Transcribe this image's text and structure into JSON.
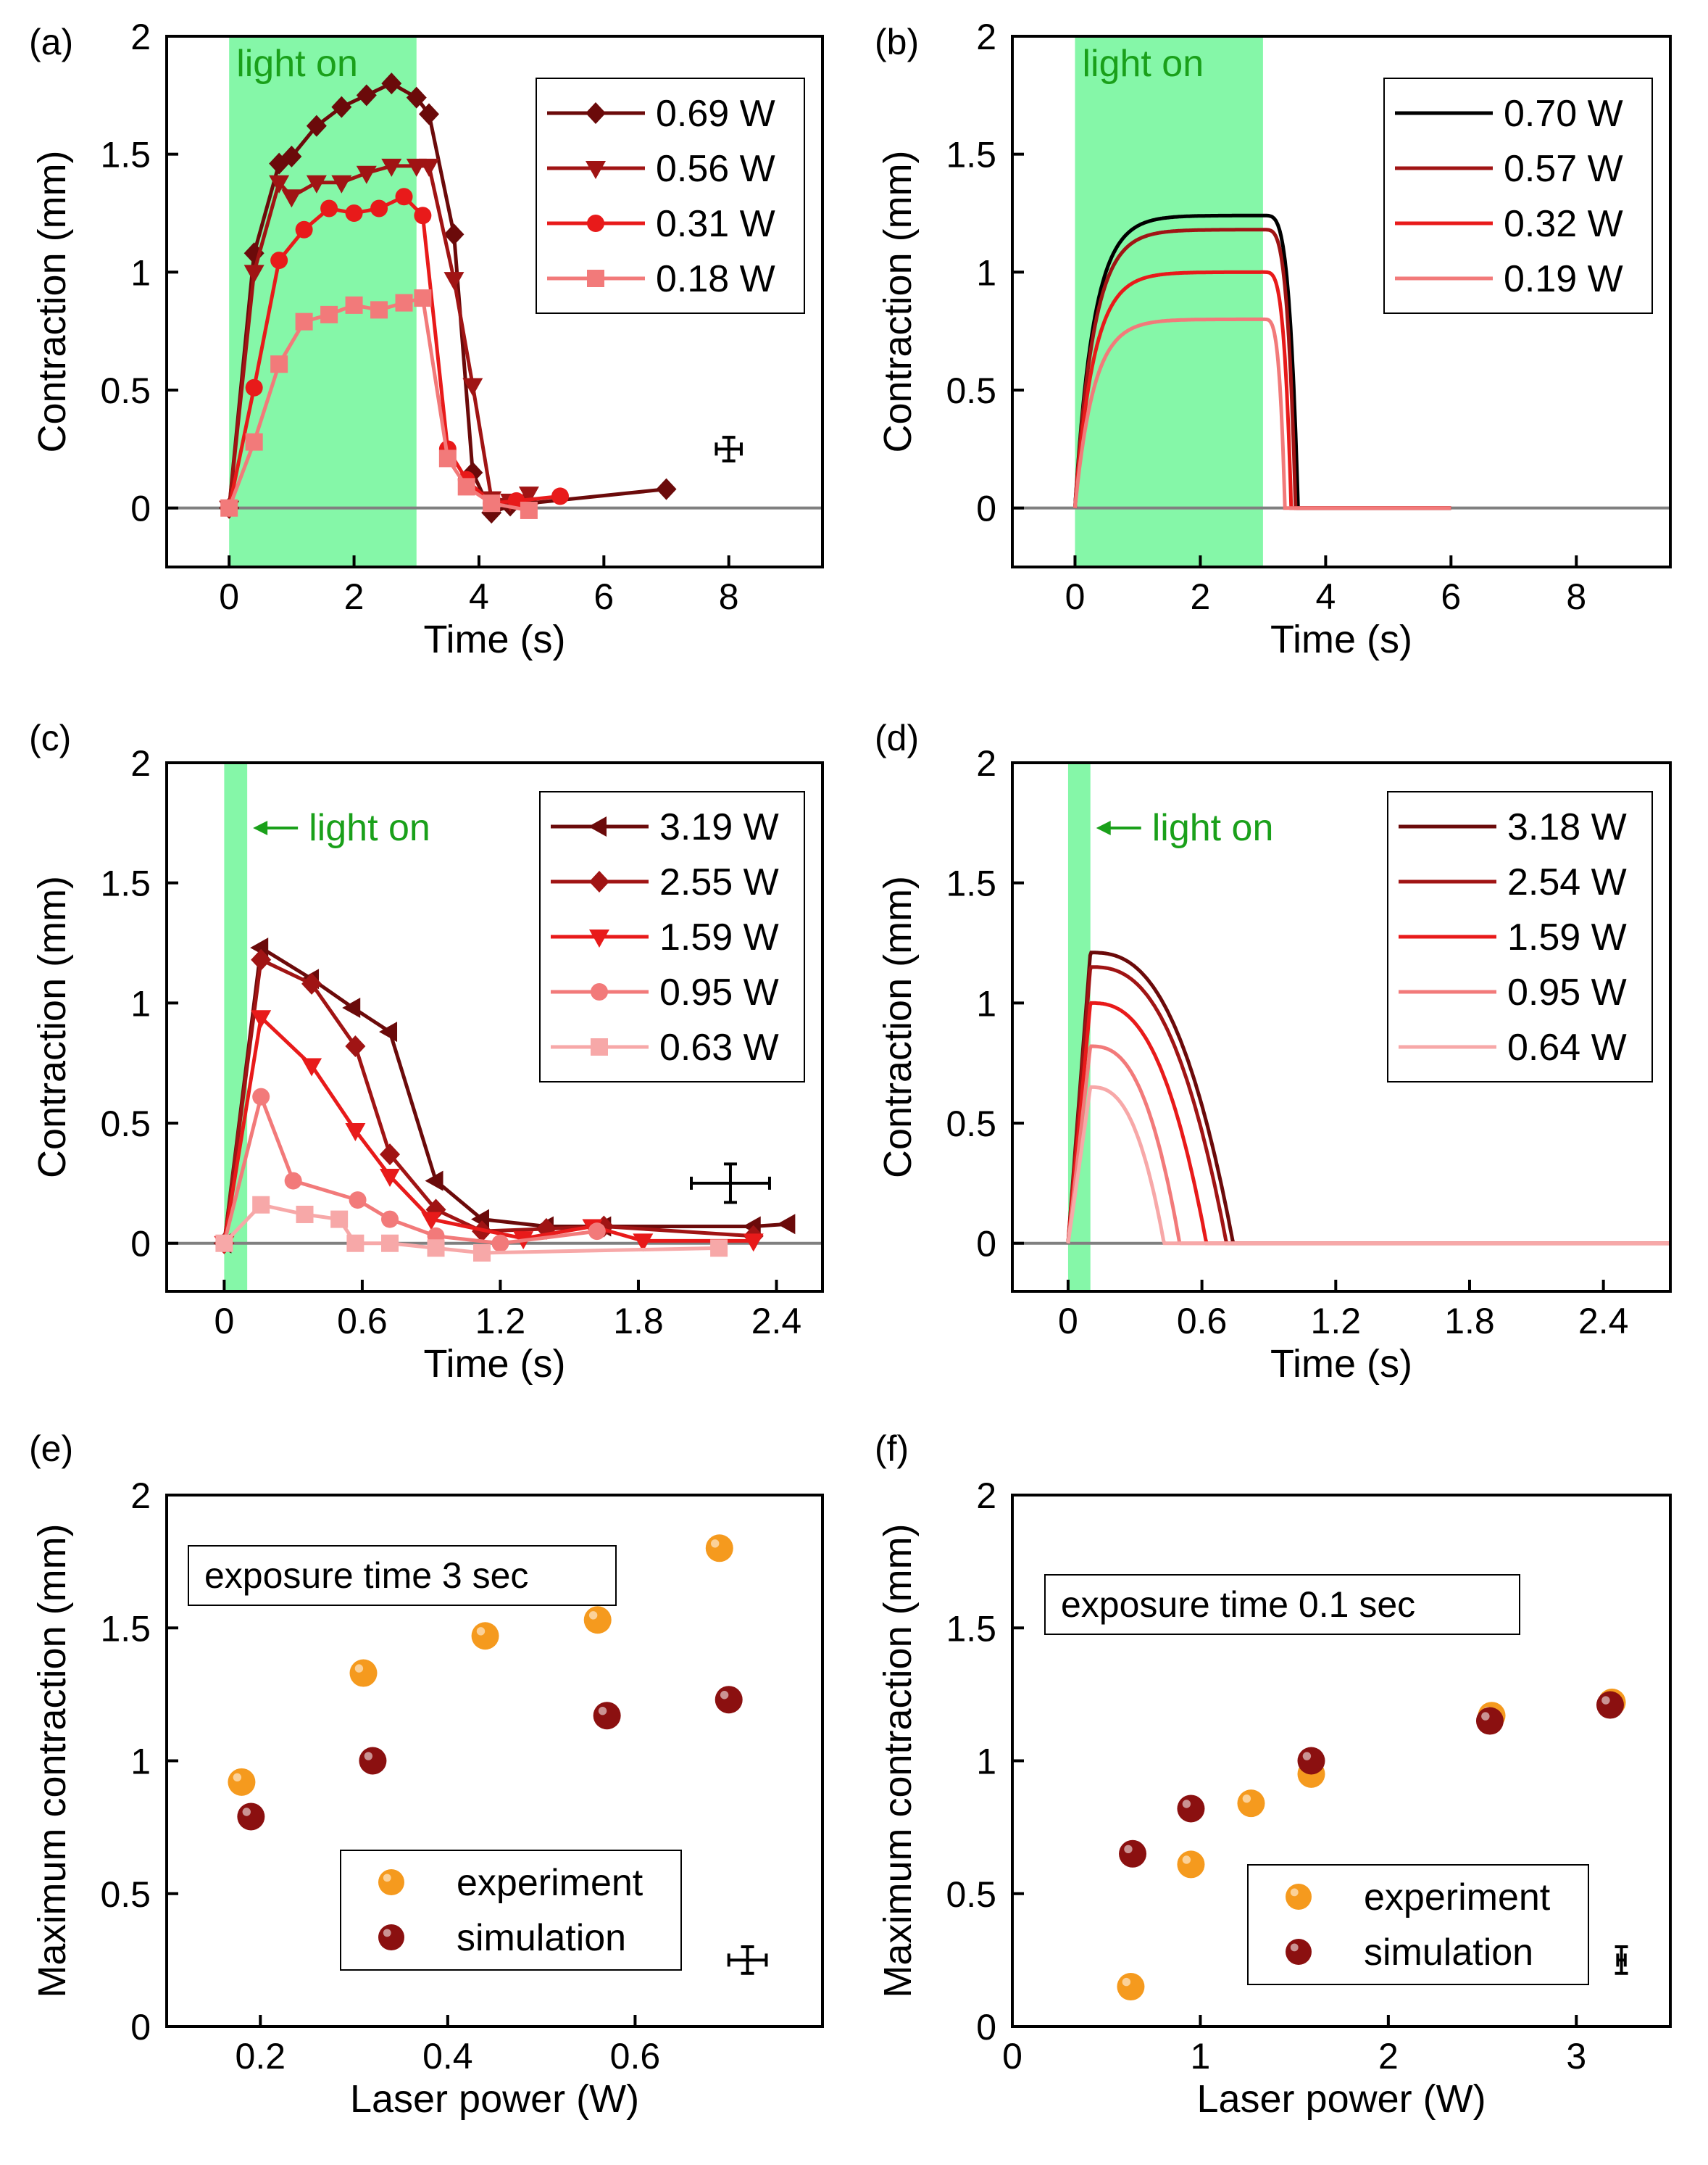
{
  "colors": {
    "c1": "#6b0a0a",
    "c2": "#a01414",
    "c3": "#e81a1a",
    "c4": "#f27a7a",
    "c5": "#f7a8a8",
    "black": "#000000",
    "lightBand": "#85f7a8",
    "lightText": "#1aa01a",
    "zeroLine": "#808080",
    "experiment": "#f59a1e",
    "simulation": "#8b1010"
  },
  "chart_data": [
    {
      "panel": "(a)",
      "type": "line",
      "xlabel": "Time (s)",
      "ylabel": "Contraction (mm)",
      "xlim": [
        -1,
        9.5
      ],
      "ylim": [
        -0.25,
        2
      ],
      "xticks": [
        0,
        2,
        4,
        6,
        8
      ],
      "xtick_labels": [
        "0",
        "2",
        "4",
        "6",
        "8"
      ],
      "yticks": [
        0,
        0.5,
        1,
        1.5,
        2
      ],
      "ytick_labels": [
        "0",
        "0.5",
        "1",
        "1.5",
        "2"
      ],
      "band": [
        0,
        3
      ],
      "band_label": "light on",
      "legend_position": "top-right",
      "series": [
        {
          "name": "0.69 W",
          "marker": "diamond",
          "color": "c1",
          "x": [
            0,
            0.4,
            0.8,
            1.0,
            1.4,
            1.8,
            2.2,
            2.6,
            3.0,
            3.2,
            3.6,
            3.9,
            4.2,
            4.5,
            4.8,
            7.0
          ],
          "y": [
            0,
            1.08,
            1.46,
            1.49,
            1.62,
            1.7,
            1.75,
            1.8,
            1.74,
            1.67,
            1.16,
            0.15,
            -0.02,
            0.01,
            0.02,
            0.08
          ]
        },
        {
          "name": "0.56 W",
          "marker": "triangle-down",
          "color": "c2",
          "x": [
            0,
            0.4,
            0.8,
            1.0,
            1.4,
            1.8,
            2.2,
            2.6,
            3.0,
            3.2,
            3.6,
            3.9,
            4.2,
            4.5,
            4.8
          ],
          "y": [
            0,
            1.0,
            1.38,
            1.32,
            1.38,
            1.38,
            1.42,
            1.45,
            1.45,
            1.45,
            0.97,
            0.52,
            0.04,
            0.03,
            0.06
          ]
        },
        {
          "name": "0.31 W",
          "marker": "circle",
          "color": "c3",
          "x": [
            0,
            0.4,
            0.8,
            1.2,
            1.6,
            2.0,
            2.4,
            2.8,
            3.1,
            3.5,
            3.8,
            4.2,
            4.6,
            5.3
          ],
          "y": [
            0,
            0.51,
            1.05,
            1.18,
            1.27,
            1.25,
            1.27,
            1.32,
            1.24,
            0.25,
            0.12,
            0.02,
            0.03,
            0.05
          ]
        },
        {
          "name": "0.18 W",
          "marker": "square",
          "color": "c4",
          "x": [
            0,
            0.4,
            0.8,
            1.2,
            1.6,
            2.0,
            2.4,
            2.8,
            3.1,
            3.5,
            3.8,
            4.2,
            4.8
          ],
          "y": [
            0,
            0.28,
            0.61,
            0.79,
            0.82,
            0.86,
            0.84,
            0.87,
            0.89,
            0.21,
            0.09,
            0.02,
            -0.01
          ]
        }
      ],
      "error_bar": {
        "x": 8.0,
        "y": 0.25,
        "dx": 0.2,
        "dy": 0.05
      }
    },
    {
      "panel": "(b)",
      "type": "line",
      "xlabel": "Time (s)",
      "ylabel": "Contraction (mm)",
      "xlim": [
        -1,
        9.5
      ],
      "ylim": [
        -0.25,
        2
      ],
      "xticks": [
        0,
        2,
        4,
        6,
        8
      ],
      "xtick_labels": [
        "0",
        "2",
        "4",
        "6",
        "8"
      ],
      "yticks": [
        0,
        0.5,
        1,
        1.5,
        2
      ],
      "ytick_labels": [
        "0",
        "0.5",
        "1",
        "1.5",
        "2"
      ],
      "band": [
        0,
        3
      ],
      "band_label": "light on",
      "legend_position": "top-right",
      "model": {
        "kind": "rise_decay",
        "on": 3,
        "tau": 0.3,
        "t_end": 6,
        "decay_widths": [
          0.56,
          0.52,
          0.45,
          0.35
        ]
      },
      "series": [
        {
          "name": "0.70 W",
          "color": "black",
          "plateau": 1.24
        },
        {
          "name": "0.57 W",
          "color": "c2",
          "plateau": 1.18
        },
        {
          "name": "0.32 W",
          "color": "c3",
          "plateau": 1.0
        },
        {
          "name": "0.19 W",
          "color": "c4",
          "plateau": 0.8
        }
      ]
    },
    {
      "panel": "(c)",
      "type": "line",
      "xlabel": "Time (s)",
      "ylabel": "Contraction (mm)",
      "xlim": [
        -0.25,
        2.6
      ],
      "ylim": [
        -0.2,
        2
      ],
      "xticks": [
        0,
        0.6,
        1.2,
        1.8,
        2.4
      ],
      "xtick_labels": [
        "0",
        "0.6",
        "1.2",
        "1.8",
        "2.4"
      ],
      "yticks": [
        0,
        0.5,
        1,
        1.5,
        2
      ],
      "ytick_labels": [
        "0",
        "0.5",
        "1",
        "1.5",
        "2"
      ],
      "band": [
        0,
        0.1
      ],
      "band_label": "light on",
      "legend_position": "top-right",
      "series": [
        {
          "name": "3.19 W",
          "marker": "triangle-left",
          "color": "c1",
          "x": [
            0,
            0.16,
            0.38,
            0.56,
            0.72,
            0.92,
            1.12,
            1.4,
            1.65,
            2.3,
            2.45
          ],
          "y": [
            0,
            1.23,
            1.1,
            0.98,
            0.88,
            0.26,
            0.1,
            0.07,
            0.07,
            0.07,
            0.08
          ]
        },
        {
          "name": "2.55 W",
          "marker": "diamond",
          "color": "c2",
          "x": [
            0,
            0.16,
            0.38,
            0.57,
            0.72,
            0.92,
            1.12,
            1.4,
            1.65,
            2.3
          ],
          "y": [
            0,
            1.18,
            1.08,
            0.82,
            0.37,
            0.14,
            0.05,
            0.06,
            0.07,
            0.03
          ]
        },
        {
          "name": "1.59 W",
          "marker": "triangle-down",
          "color": "c3",
          "x": [
            0,
            0.16,
            0.38,
            0.57,
            0.72,
            0.9,
            1.3,
            1.6,
            1.82,
            2.3
          ],
          "y": [
            0,
            0.94,
            0.74,
            0.47,
            0.28,
            0.1,
            0.02,
            0.07,
            0.01,
            0.01
          ]
        },
        {
          "name": "0.95 W",
          "marker": "circle",
          "color": "c4",
          "x": [
            0,
            0.16,
            0.3,
            0.58,
            0.72,
            0.92,
            1.2,
            1.62
          ],
          "y": [
            0,
            0.61,
            0.26,
            0.18,
            0.1,
            0.03,
            0.0,
            0.05
          ]
        },
        {
          "name": "0.63 W",
          "marker": "square",
          "color": "c5",
          "x": [
            0,
            0.16,
            0.35,
            0.5,
            0.57,
            0.72,
            0.92,
            1.12,
            2.15
          ],
          "y": [
            0,
            0.16,
            0.12,
            0.1,
            0.0,
            0.0,
            -0.02,
            -0.04,
            -0.02
          ]
        }
      ],
      "error_bar": {
        "x": 2.2,
        "y": 0.25,
        "dx": 0.17,
        "dy": 0.08
      }
    },
    {
      "panel": "(d)",
      "type": "line",
      "xlabel": "Time (s)",
      "ylabel": "Contraction (mm)",
      "xlim": [
        -0.25,
        2.7
      ],
      "ylim": [
        -0.2,
        2
      ],
      "xticks": [
        0,
        0.6,
        1.2,
        1.8,
        2.4
      ],
      "xtick_labels": [
        "0",
        "0.6",
        "1.2",
        "1.8",
        "2.4"
      ],
      "yticks": [
        0,
        0.5,
        1,
        1.5,
        2
      ],
      "ytick_labels": [
        "0",
        "0.5",
        "1",
        "1.5",
        "2"
      ],
      "band": [
        0,
        0.1
      ],
      "band_label": "light on",
      "legend_position": "top-right",
      "model": {
        "kind": "pulse_decay",
        "on": 0.1,
        "t_end": 2.7,
        "t_zero": [
          0.74,
          0.71,
          0.62,
          0.5,
          0.43
        ]
      },
      "series": [
        {
          "name": "3.18 W",
          "color": "c1",
          "peak": 1.21
        },
        {
          "name": "2.54 W",
          "color": "c2",
          "peak": 1.15
        },
        {
          "name": "1.59 W",
          "color": "c3",
          "peak": 1.0
        },
        {
          "name": "0.95 W",
          "color": "c4",
          "peak": 0.82
        },
        {
          "name": "0.64 W",
          "color": "c5",
          "peak": 0.65
        }
      ]
    },
    {
      "panel": "(e)",
      "type": "scatter",
      "xlabel": "Laser power (W)",
      "ylabel": "Maximum contraction (mm)",
      "xlim": [
        0.1,
        0.8
      ],
      "ylim": [
        0,
        2
      ],
      "xticks": [
        0.2,
        0.4,
        0.6
      ],
      "xtick_labels": [
        "0.2",
        "0.4",
        "0.6"
      ],
      "yticks": [
        0,
        0.5,
        1,
        1.5,
        2
      ],
      "ytick_labels": [
        "0",
        "0.5",
        "1",
        "1.5",
        "2"
      ],
      "annotation": "exposure time 3 sec",
      "legend_position": "bottom-center",
      "series": [
        {
          "name": "experiment",
          "color": "experiment",
          "x": [
            0.18,
            0.31,
            0.44,
            0.56,
            0.69
          ],
          "y": [
            0.92,
            1.33,
            1.47,
            1.53,
            1.8
          ]
        },
        {
          "name": "simulation",
          "color": "simulation",
          "x": [
            0.19,
            0.32,
            0.57,
            0.7
          ],
          "y": [
            0.79,
            1.0,
            1.17,
            1.23
          ]
        }
      ],
      "error_bar": {
        "x": 0.72,
        "y": 0.25,
        "dx": 0.02,
        "dy": 0.05
      }
    },
    {
      "panel": "(f)",
      "type": "scatter",
      "xlabel": "Laser power (W)",
      "ylabel": "Maximum contraction (mm)",
      "xlim": [
        0,
        3.5
      ],
      "ylim": [
        0,
        2
      ],
      "xticks": [
        0,
        1,
        2,
        3
      ],
      "xtick_labels": [
        "0",
        "1",
        "2",
        "3"
      ],
      "yticks": [
        0,
        0.5,
        1,
        1.5,
        2
      ],
      "ytick_labels": [
        "0",
        "0.5",
        "1",
        "1.5",
        "2"
      ],
      "annotation": "exposure time 0.1 sec",
      "legend_position": "bottom-right",
      "series": [
        {
          "name": "experiment",
          "color": "experiment",
          "x": [
            0.63,
            0.95,
            1.27,
            1.59,
            2.55,
            3.19
          ],
          "y": [
            0.15,
            0.61,
            0.84,
            0.95,
            1.17,
            1.22
          ]
        },
        {
          "name": "simulation",
          "color": "simulation",
          "x": [
            0.64,
            0.95,
            1.59,
            2.54,
            3.18
          ],
          "y": [
            0.65,
            0.82,
            1.0,
            1.15,
            1.21
          ]
        }
      ],
      "error_bar": {
        "x": 3.24,
        "y": 0.25,
        "dx": 0.02,
        "dy": 0.05
      }
    }
  ]
}
